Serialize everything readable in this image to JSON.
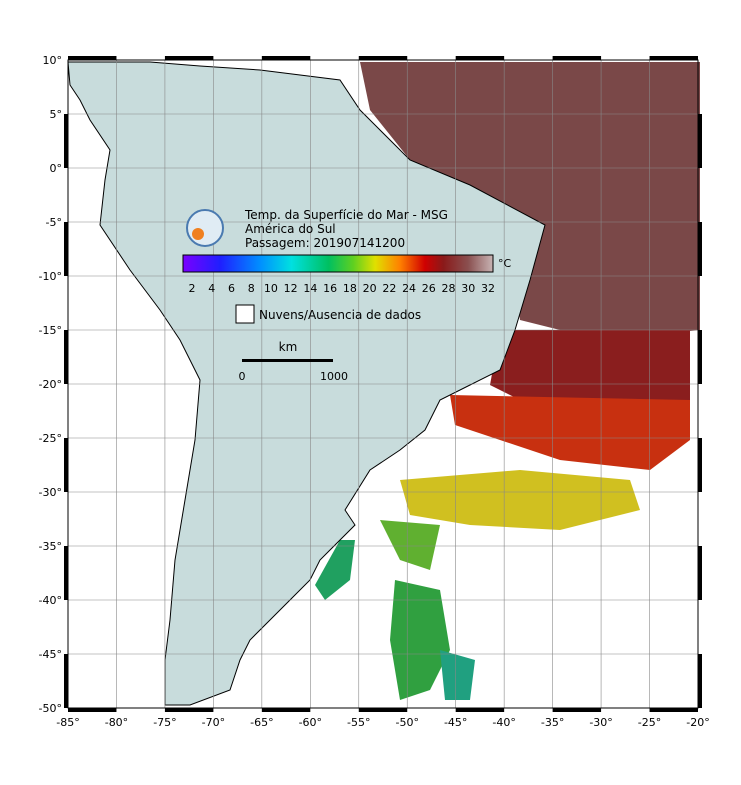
{
  "title": "Temp. da Superfície do Mar - MSG",
  "region": "América do Sul",
  "pass": "Passagem: 201907141200",
  "colorbar": {
    "unit": "°C",
    "ticks": [
      2,
      4,
      6,
      8,
      10,
      12,
      14,
      16,
      18,
      20,
      22,
      24,
      26,
      28,
      30,
      32
    ]
  },
  "legend": "Nuvens/Ausencia de dados",
  "scale": {
    "unit": "km",
    "labels": [
      "0",
      "1000"
    ]
  },
  "lon_labels": [
    "-85°",
    "-80°",
    "-75°",
    "-70°",
    "-65°",
    "-60°",
    "-55°",
    "-50°",
    "-45°",
    "-40°",
    "-35°",
    "-30°",
    "-25°",
    "-20°"
  ],
  "lat_labels": [
    "10°",
    "5°",
    "0°",
    "-5°",
    "-10°",
    "-15°",
    "-20°",
    "-25°",
    "-30°",
    "-35°",
    "-40°",
    "-45°",
    "-50°"
  ]
}
